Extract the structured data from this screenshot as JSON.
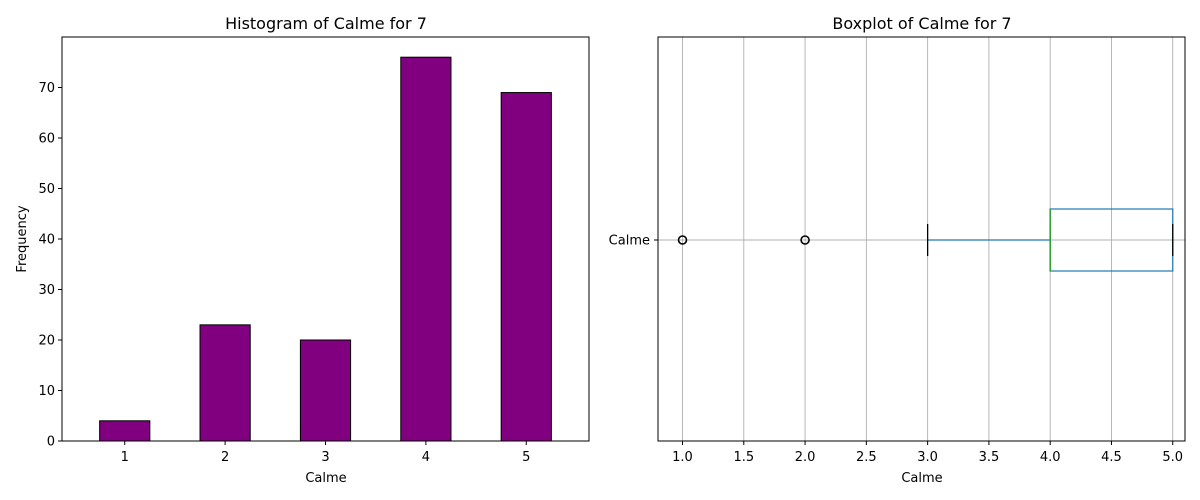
{
  "colors": {
    "bar_fill": "#800080",
    "bar_edge": "#000000",
    "box": "#1f77b4",
    "median": "#2ca02c",
    "grid": "#b0b0b0",
    "whisker_cap": "#000000"
  },
  "chart_data": [
    {
      "type": "bar",
      "title": "Histogram of Calme for 7",
      "xlabel": "Calme",
      "ylabel": "Frequency",
      "categories": [
        "1",
        "2",
        "3",
        "4",
        "5"
      ],
      "values": [
        4,
        23,
        20,
        76,
        69
      ],
      "ylim": [
        0,
        80
      ],
      "yticks": [
        0,
        10,
        20,
        30,
        40,
        50,
        60,
        70
      ],
      "grid": false
    },
    {
      "type": "boxplot",
      "title": "Boxplot of Calme for 7",
      "xlabel": "Calme",
      "category": "Calme",
      "xlim": [
        0.8,
        5.1
      ],
      "xticks": [
        1.0,
        1.5,
        2.0,
        2.5,
        3.0,
        3.5,
        4.0,
        4.5,
        5.0
      ],
      "xtick_labels": [
        "1.0",
        "1.5",
        "2.0",
        "2.5",
        "3.0",
        "3.5",
        "4.0",
        "4.5",
        "5.0"
      ],
      "whisker_low": 3,
      "q1": 4,
      "median": 4,
      "q3": 5,
      "whisker_high": 5,
      "outliers": [
        1,
        2
      ],
      "grid": true
    }
  ]
}
